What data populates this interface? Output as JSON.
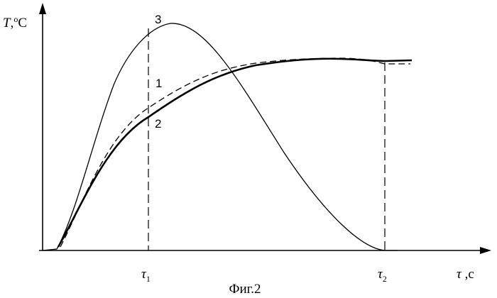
{
  "figure": {
    "caption": "Фиг.2",
    "y_axis_label": {
      "symbol": "T",
      "sep": ",",
      "deg": "o",
      "unit": "C"
    },
    "x_axis_label": {
      "symbol": "τ",
      "sep": " ,",
      "unit": "c"
    },
    "markers": [
      {
        "symbol": "τ",
        "sub": "1"
      },
      {
        "symbol": "τ",
        "sub": "2"
      }
    ],
    "curve_labels": [
      "3",
      "1",
      "2"
    ]
  }
}
